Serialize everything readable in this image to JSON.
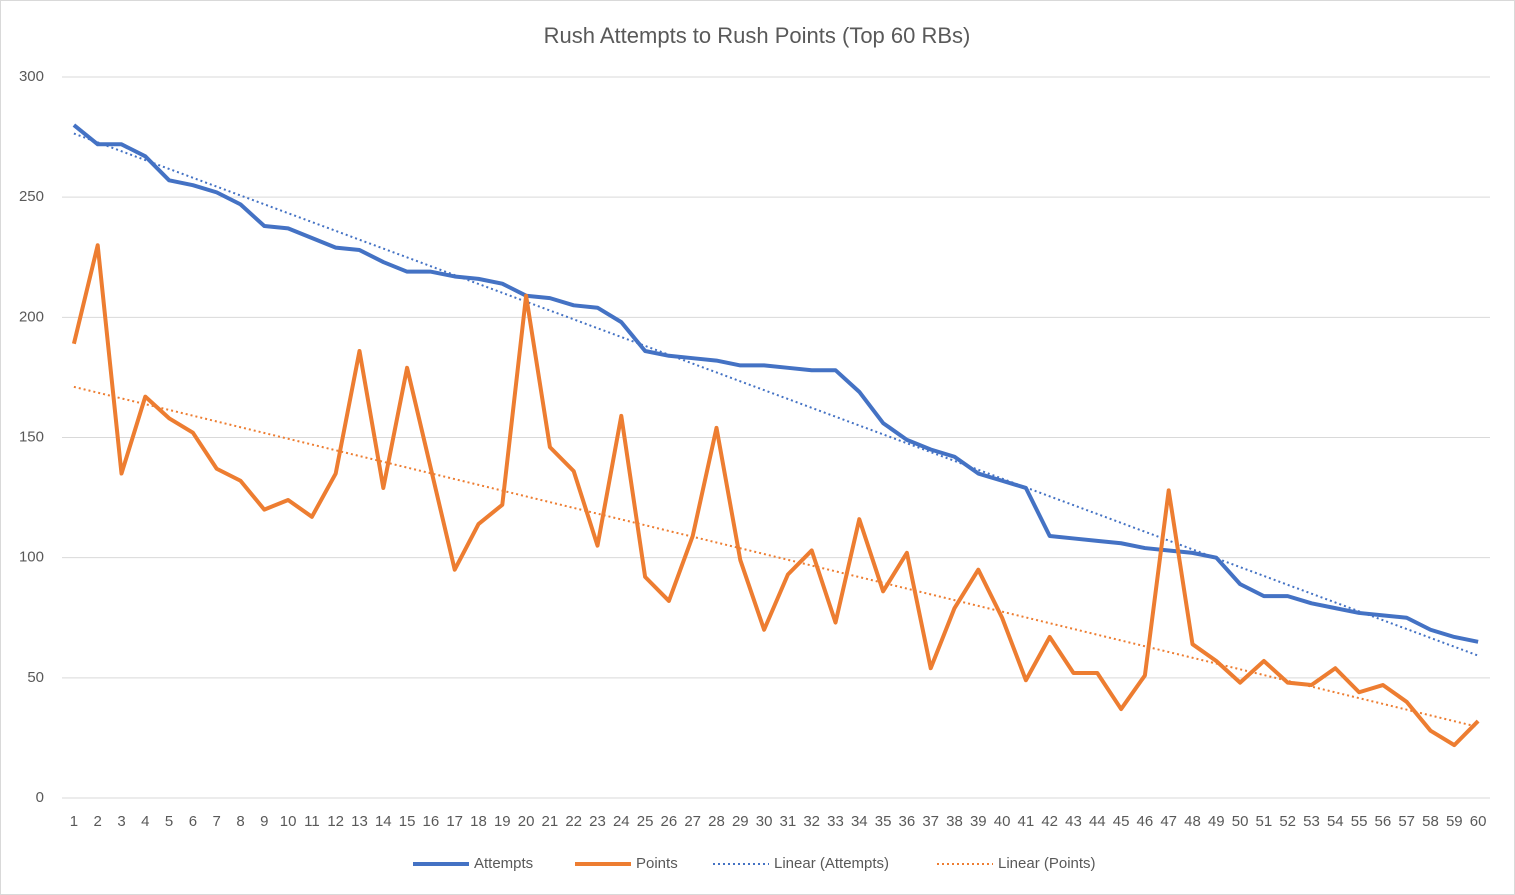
{
  "chart_data": {
    "type": "line",
    "title": "Rush Attempts to Rush Points (Top 60 RBs)",
    "categories": [
      "1",
      "2",
      "3",
      "4",
      "5",
      "6",
      "7",
      "8",
      "9",
      "10",
      "11",
      "12",
      "13",
      "14",
      "15",
      "16",
      "17",
      "18",
      "19",
      "20",
      "21",
      "22",
      "23",
      "24",
      "25",
      "26",
      "27",
      "28",
      "29",
      "30",
      "31",
      "32",
      "33",
      "34",
      "35",
      "36",
      "37",
      "38",
      "39",
      "40",
      "41",
      "42",
      "43",
      "44",
      "45",
      "46",
      "47",
      "48",
      "49",
      "50",
      "51",
      "52",
      "53",
      "54",
      "55",
      "56",
      "57",
      "58",
      "59",
      "60"
    ],
    "series": [
      {
        "name": "Attempts",
        "color": "#4472c4",
        "values": [
          280,
          272,
          272,
          267,
          257,
          255,
          252,
          247,
          238,
          237,
          233,
          229,
          228,
          223,
          219,
          219,
          217,
          216,
          214,
          209,
          208,
          205,
          204,
          198,
          186,
          184,
          183,
          182,
          180,
          180,
          179,
          178,
          178,
          169,
          156,
          149,
          145,
          142,
          135,
          132,
          129,
          109,
          108,
          107,
          106,
          104,
          103,
          102,
          100,
          89,
          84,
          84,
          81,
          79,
          77,
          76,
          75,
          70,
          67,
          65
        ]
      },
      {
        "name": "Points",
        "color": "#ed7d31",
        "values": [
          189,
          230,
          135,
          167,
          158,
          152,
          137,
          132,
          120,
          124,
          117,
          135,
          186,
          129,
          179,
          137,
          95,
          114,
          122,
          209,
          146,
          136,
          105,
          159,
          92,
          82,
          109,
          154,
          99,
          70,
          93,
          103,
          73,
          116,
          86,
          102,
          54,
          79,
          95,
          75,
          49,
          67,
          52,
          52,
          37,
          51,
          128,
          64,
          57,
          48,
          57,
          48,
          47,
          54,
          44,
          47,
          40,
          28,
          22,
          32
        ]
      }
    ],
    "trendlines": [
      {
        "name": "Linear (Attempts)",
        "series": 0,
        "color": "#4472c4"
      },
      {
        "name": "Linear (Points)",
        "series": 1,
        "color": "#ed7d31"
      }
    ],
    "ylim": [
      0,
      300
    ],
    "yticks": [
      0,
      50,
      100,
      150,
      200,
      250,
      300
    ],
    "grid": true,
    "legend": "bottom"
  }
}
